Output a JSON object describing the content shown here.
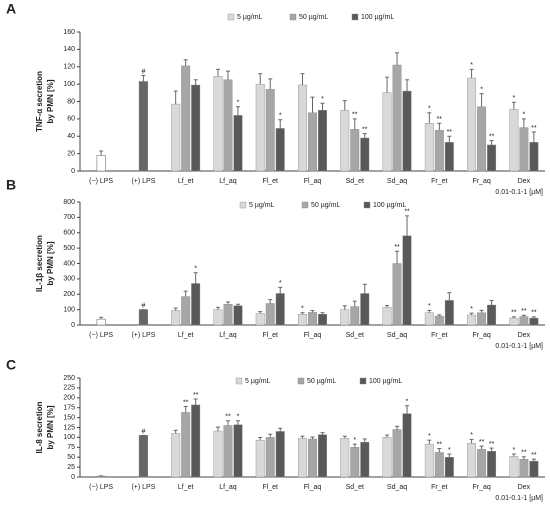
{
  "chart_data": [
    {
      "type": "bar",
      "panel": "A",
      "ylabel": [
        "TNF-α secretion",
        "by PMN [%]"
      ],
      "note": "0.01-0.1-1 [µM]",
      "categories": [
        "(−) LPS",
        "(+) LPS",
        "Lf_et",
        "Lf_aq",
        "Fl_et",
        "Fl_aq",
        "Sd_et",
        "Sd_aq",
        "Fr_et",
        "Fr_aq",
        "Dex"
      ],
      "control_values": [
        18,
        103,
        null,
        null,
        null,
        null,
        null,
        null,
        null,
        null,
        null
      ],
      "control_errors": [
        5,
        7,
        null,
        null,
        null,
        null,
        null,
        null,
        null,
        null,
        null
      ],
      "control_sig": [
        null,
        "#",
        null,
        null,
        null,
        null,
        null,
        null,
        null,
        null,
        null
      ],
      "series": [
        {
          "name": "5 µg/mL",
          "color": "#d9d9d9",
          "values": [
            null,
            null,
            77,
            109,
            100,
            99,
            70,
            90,
            55,
            107,
            71
          ],
          "errors": [
            null,
            null,
            15,
            8,
            12,
            13,
            11,
            18,
            12,
            10,
            8
          ],
          "sig": [
            null,
            null,
            null,
            null,
            null,
            null,
            null,
            null,
            "*",
            "*",
            "*"
          ]
        },
        {
          "name": "50 µg/mL",
          "color": "#a6a6a6",
          "values": [
            null,
            null,
            121,
            105,
            94,
            67,
            48,
            122,
            47,
            74,
            50
          ],
          "errors": [
            null,
            null,
            7,
            10,
            12,
            18,
            12,
            14,
            8,
            15,
            10
          ],
          "sig": [
            null,
            null,
            null,
            null,
            null,
            null,
            "**",
            null,
            "**",
            "*",
            "*"
          ]
        },
        {
          "name": "100 µg/mL",
          "color": "#595959",
          "values": [
            null,
            null,
            99,
            64,
            49,
            70,
            38,
            92,
            33,
            30,
            33
          ],
          "errors": [
            null,
            null,
            6,
            10,
            10,
            8,
            5,
            13,
            7,
            5,
            12
          ],
          "sig": [
            null,
            null,
            null,
            "*",
            "*",
            "*",
            "**",
            null,
            "**",
            "**",
            "**"
          ]
        }
      ],
      "ylim": [
        0,
        160
      ],
      "yticks": [
        0,
        20,
        40,
        60,
        80,
        100,
        120,
        140,
        160
      ]
    },
    {
      "type": "bar",
      "panel": "B",
      "ylabel": [
        "IL-1β secretion",
        "by PMN [%]"
      ],
      "note": "0.01-0.1-1 [µM]",
      "categories": [
        "(−) LPS",
        "(+) LPS",
        "Lf_et",
        "Lf_aq",
        "Fl_et",
        "Fl_aq",
        "Sd_et",
        "Sd_aq",
        "Fr_et",
        "Fr_aq",
        "Dex"
      ],
      "control_values": [
        38,
        100,
        null,
        null,
        null,
        null,
        null,
        null,
        null,
        null,
        null
      ],
      "control_errors": [
        12,
        0,
        null,
        null,
        null,
        null,
        null,
        null,
        null,
        null,
        null
      ],
      "control_sig": [
        null,
        "#",
        null,
        null,
        null,
        null,
        null,
        null,
        null,
        null,
        null
      ],
      "series": [
        {
          "name": "5 µg/mL",
          "color": "#d9d9d9",
          "values": [
            null,
            null,
            95,
            100,
            75,
            70,
            100,
            115,
            80,
            65,
            45
          ],
          "errors": [
            null,
            null,
            15,
            15,
            12,
            10,
            25,
            12,
            15,
            12,
            8
          ],
          "sig": [
            null,
            null,
            null,
            null,
            null,
            "*",
            null,
            null,
            "*",
            "*",
            "**"
          ]
        },
        {
          "name": "50 µg/mL",
          "color": "#a6a6a6",
          "values": [
            null,
            null,
            185,
            135,
            140,
            82,
            120,
            400,
            58,
            80,
            55
          ],
          "errors": [
            null,
            null,
            35,
            15,
            25,
            12,
            35,
            80,
            8,
            15,
            8
          ],
          "sig": [
            null,
            null,
            null,
            null,
            null,
            null,
            null,
            "**",
            null,
            null,
            "**"
          ]
        },
        {
          "name": "100 µg/mL",
          "color": "#595959",
          "values": [
            null,
            null,
            270,
            125,
            205,
            70,
            205,
            580,
            160,
            130,
            45
          ],
          "errors": [
            null,
            null,
            70,
            10,
            40,
            10,
            60,
            130,
            50,
            30,
            8
          ],
          "sig": [
            null,
            null,
            "*",
            null,
            "*",
            null,
            null,
            "**",
            null,
            null,
            "**"
          ]
        }
      ],
      "ylim": [
        0,
        800
      ],
      "yticks": [
        0,
        100,
        200,
        300,
        400,
        500,
        600,
        700,
        800
      ]
    },
    {
      "type": "bar",
      "panel": "C",
      "ylabel": [
        "IL-8 secretion",
        "by PMN [%]"
      ],
      "note": "0.01-0.1-1 [µM]",
      "categories": [
        "(−) LPS",
        "(+) LPS",
        "Lf_et",
        "Lf_aq",
        "Fl_et",
        "Fl_aq",
        "Sd_et",
        "Sd_aq",
        "Fr_et",
        "Fr_aq",
        "Dex"
      ],
      "control_values": [
        2,
        105,
        null,
        null,
        null,
        null,
        null,
        null,
        null,
        null,
        null
      ],
      "control_errors": [
        1,
        0,
        null,
        null,
        null,
        null,
        null,
        null,
        null,
        null,
        null
      ],
      "control_sig": [
        null,
        "#",
        null,
        null,
        null,
        null,
        null,
        null,
        null,
        null,
        null
      ],
      "series": [
        {
          "name": "5 µg/mL",
          "color": "#d9d9d9",
          "values": [
            null,
            null,
            110,
            116,
            93,
            98,
            98,
            100,
            83,
            85,
            52
          ],
          "errors": [
            null,
            null,
            8,
            10,
            7,
            5,
            5,
            6,
            10,
            10,
            6
          ],
          "sig": [
            null,
            null,
            null,
            null,
            null,
            null,
            null,
            null,
            "*",
            "*",
            "*"
          ]
        },
        {
          "name": "50 µg/mL",
          "color": "#a6a6a6",
          "values": [
            null,
            null,
            163,
            130,
            100,
            96,
            75,
            120,
            62,
            70,
            45
          ],
          "errors": [
            null,
            null,
            15,
            12,
            8,
            5,
            8,
            8,
            10,
            8,
            6
          ],
          "sig": [
            null,
            null,
            "**",
            "**",
            null,
            null,
            "*",
            null,
            "**",
            "**",
            "**"
          ]
        },
        {
          "name": "100 µg/mL",
          "color": "#595959",
          "values": [
            null,
            null,
            182,
            132,
            115,
            107,
            88,
            160,
            50,
            65,
            40
          ],
          "errors": [
            null,
            null,
            15,
            10,
            8,
            5,
            8,
            20,
            8,
            8,
            5
          ],
          "sig": [
            null,
            null,
            "**",
            "*",
            null,
            null,
            null,
            "*",
            "*",
            "**",
            "**"
          ]
        }
      ],
      "ylim": [
        0,
        250
      ],
      "yticks": [
        0,
        25,
        50,
        75,
        100,
        125,
        150,
        175,
        200,
        225,
        250
      ]
    }
  ]
}
